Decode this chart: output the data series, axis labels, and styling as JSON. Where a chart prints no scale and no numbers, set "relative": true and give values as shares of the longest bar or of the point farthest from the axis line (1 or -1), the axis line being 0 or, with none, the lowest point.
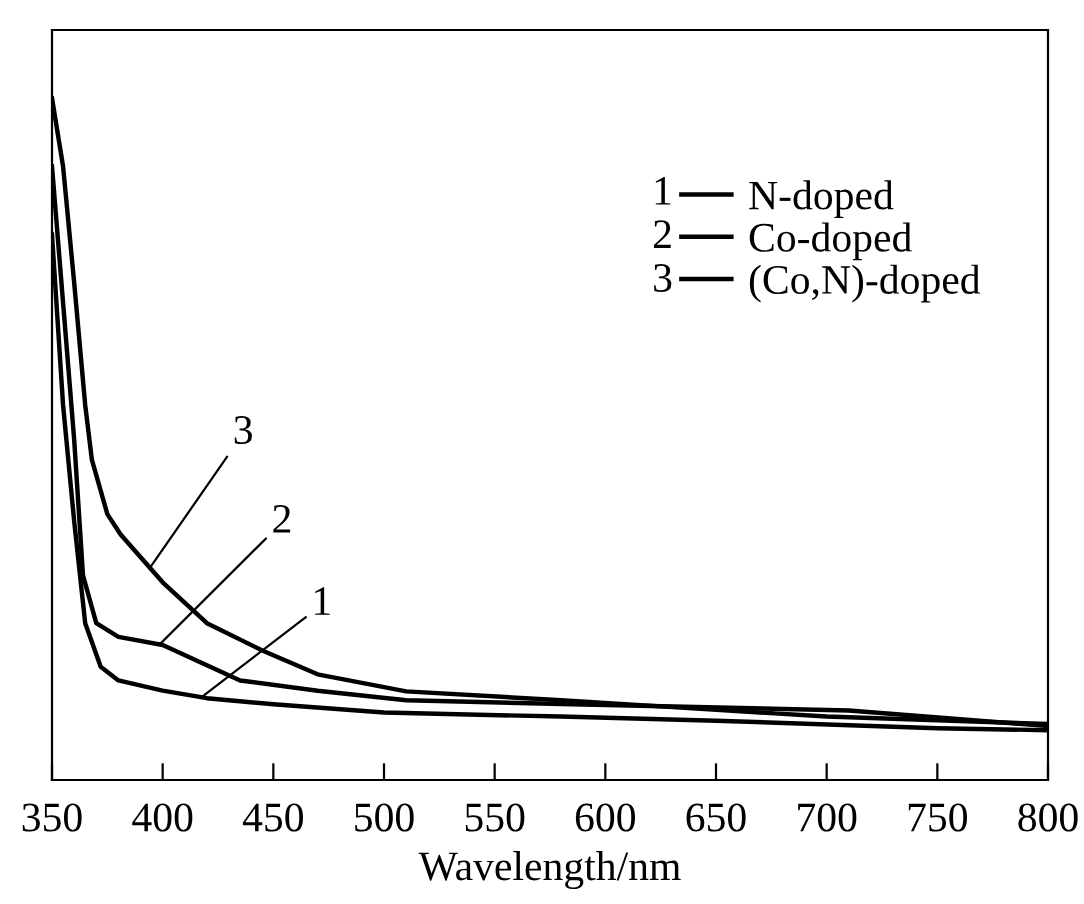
{
  "chart_data": {
    "type": "line",
    "relative": true,
    "xlabel": "Wavelength/nm",
    "xlim": [
      350,
      800
    ],
    "xticks": [
      350,
      400,
      450,
      500,
      550,
      600,
      650,
      700,
      750,
      800
    ],
    "legend": "top right",
    "grid": false,
    "marker": "none",
    "line_style": "solid",
    "series": [
      {
        "name": "N-doped",
        "color": "#000000",
        "x": [
          350,
          355,
          360,
          365,
          372,
          380,
          400,
          420,
          450,
          500,
          580,
          650,
          750,
          800
        ],
        "values": [
          0.8,
          0.55,
          0.38,
          0.23,
          0.166,
          0.146,
          0.131,
          0.12,
          0.111,
          0.099,
          0.093,
          0.087,
          0.076,
          0.073
        ]
      },
      {
        "name": "Co-doped",
        "color": "#000000",
        "x": [
          350,
          355,
          360,
          364,
          370,
          380,
          400,
          435,
          470,
          510,
          585,
          710,
          800
        ],
        "values": [
          0.9,
          0.7,
          0.5,
          0.3,
          0.23,
          0.21,
          0.198,
          0.146,
          0.131,
          0.117,
          0.111,
          0.102,
          0.079
        ]
      },
      {
        "name": "(Co,N)-doped",
        "color": "#000000",
        "x": [
          350,
          355,
          360,
          365,
          368,
          375,
          381,
          400,
          420,
          445,
          470,
          510,
          580,
          625,
          700,
          800
        ],
        "values": [
          1.0,
          0.9,
          0.73,
          0.55,
          0.47,
          0.39,
          0.36,
          0.29,
          0.23,
          0.19,
          0.155,
          0.13,
          0.117,
          0.108,
          0.093,
          0.082
        ]
      }
    ],
    "annotations": [
      {
        "text": "1",
        "x": 417,
        "y": 0.12
      },
      {
        "text": "2",
        "x": 399,
        "y": 0.2
      },
      {
        "text": "3",
        "x": 394,
        "y": 0.31
      }
    ]
  }
}
